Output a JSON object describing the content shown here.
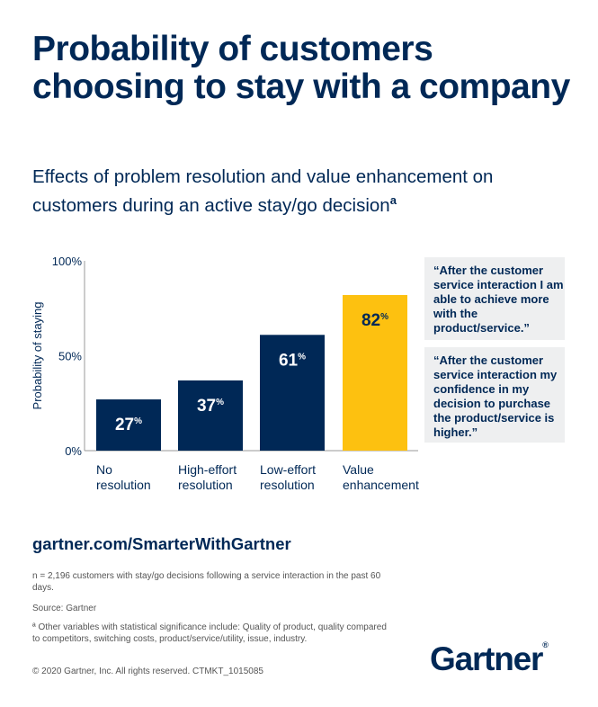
{
  "title": "Probability of customers choosing to stay with a company",
  "subtitle": "Effects of problem resolution and value enhancement on customers during an active stay/go decision",
  "subtitle_footnote_mark": "a",
  "chart_data": {
    "type": "bar",
    "categories": [
      [
        "No",
        "resolution"
      ],
      [
        "High-effort",
        "resolution"
      ],
      [
        "Low-effort",
        "resolution"
      ],
      [
        "Value",
        "enhancement"
      ]
    ],
    "values": [
      27,
      37,
      61,
      82
    ],
    "value_labels": [
      "27",
      "37",
      "61",
      "82"
    ],
    "value_suffix": "%",
    "ylabel": "Probability of staying",
    "ylim": [
      0,
      100
    ],
    "yticks": [
      "0%",
      "50%",
      "100%"
    ],
    "grid": false,
    "colors": [
      "#002856",
      "#002856",
      "#002856",
      "#fdc110"
    ],
    "label_colors": [
      "#ffffff",
      "#ffffff",
      "#ffffff",
      "#002856"
    ]
  },
  "quotes": [
    "“After the customer service interaction I am able to achieve more with the product/service.”",
    "“After the customer service interaction my confidence in my decision to purchase the product/service is higher.”"
  ],
  "url": "gartner.com/SmarterWithGartner",
  "footnotes": {
    "n": "n = 2,196 customers with stay/go decisions following a service interaction in the past 60 days.",
    "source": "Source: Gartner",
    "a": "ª Other variables with statistical significance include: Quality of product, quality compared to competitors, switching costs, product/service/utility, issue, industry.",
    "copyright": "© 2020 Gartner, Inc. All rights reserved. CTMKT_1015085"
  },
  "logo": {
    "text": "Gartner",
    "mark": "®"
  }
}
